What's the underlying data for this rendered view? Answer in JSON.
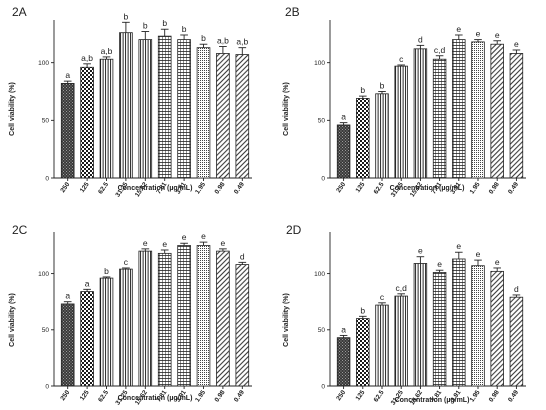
{
  "figure": {
    "panels": [
      "2A",
      "2B",
      "2C",
      "2D"
    ]
  },
  "chart_data": [
    {
      "type": "bar",
      "panel_label": "2A",
      "xlabel": "Concentration (µg/mL)",
      "ylabel": "Cell viability (%)",
      "ylim": [
        0,
        137
      ],
      "yticks": [
        "0",
        "50",
        "100"
      ],
      "categories": [
        "250",
        "125",
        "62.5",
        "31.25",
        "15.62",
        "7.81",
        "3.91",
        "1.95",
        "0.98",
        "0.49"
      ],
      "values": [
        82,
        96,
        103,
        126,
        120,
        123,
        120,
        113,
        108,
        107
      ],
      "errors": [
        2,
        3,
        2,
        9,
        7,
        6,
        4,
        3,
        6,
        6
      ],
      "letters": [
        "a",
        "a,b",
        "a,b",
        "b",
        "b",
        "b",
        "b",
        "b",
        "a,b",
        "a,b"
      ],
      "patterns": [
        "dark",
        "check",
        "vert",
        "vert",
        "vert",
        "hgrid",
        "hgrid",
        "grid",
        "diag",
        "diag"
      ],
      "grid": false
    },
    {
      "type": "bar",
      "panel_label": "2B",
      "xlabel": "Concentration (µg/mL)",
      "ylabel": "Cell viability (%)",
      "ylim": [
        0,
        137
      ],
      "yticks": [
        "0",
        "50",
        "100"
      ],
      "categories": [
        "250",
        "125",
        "62.5",
        "31.25",
        "15.62",
        "7.81",
        "3.91",
        "1.95",
        "0.98",
        "0.49"
      ],
      "values": [
        46,
        69,
        73,
        97,
        112,
        103,
        120,
        118,
        116,
        108
      ],
      "errors": [
        2,
        2,
        2,
        1,
        3,
        3,
        4,
        2,
        3,
        3
      ],
      "letters": [
        "a",
        "b",
        "b",
        "c",
        "d",
        "c,d",
        "e",
        "e",
        "e",
        "e"
      ],
      "patterns": [
        "dark",
        "check",
        "vert",
        "vert",
        "vert",
        "hgrid",
        "hgrid",
        "grid",
        "diag",
        "diag"
      ],
      "grid": false
    },
    {
      "type": "bar",
      "panel_label": "2C",
      "xlabel": "Concentration (µg/mL)",
      "ylabel": "Cell viability (%)",
      "ylim": [
        0,
        137
      ],
      "yticks": [
        "0",
        "50",
        "100"
      ],
      "categories": [
        "250",
        "125",
        "62.5",
        "31.25",
        "15.62",
        "7.81",
        "3.91",
        "1.95",
        "0.98",
        "0.49"
      ],
      "values": [
        73,
        84,
        96,
        104,
        120,
        118,
        125,
        125,
        120,
        108
      ],
      "errors": [
        2,
        2,
        1,
        1,
        2,
        3,
        2,
        3,
        2,
        2
      ],
      "letters": [
        "a",
        "a",
        "b",
        "c",
        "e",
        "e",
        "e",
        "e",
        "e",
        "d"
      ],
      "patterns": [
        "dark",
        "check",
        "vert",
        "vert",
        "vert",
        "hgrid",
        "hgrid",
        "grid",
        "diag",
        "diag"
      ],
      "grid": false
    },
    {
      "type": "bar",
      "panel_label": "2D",
      "xlabel": "Concentration (µg/mL)",
      "ylabel": "Cell viability (%)",
      "ylim": [
        0,
        137
      ],
      "yticks": [
        "0",
        "50",
        "100"
      ],
      "categories": [
        "250",
        "125",
        "62.5",
        "31.25",
        "15.62",
        "7.81",
        "3.91",
        "1.95",
        "0.98",
        "0.49"
      ],
      "values": [
        43,
        60,
        72,
        80,
        109,
        101,
        113,
        107,
        102,
        79
      ],
      "errors": [
        2,
        2,
        2,
        2,
        6,
        2,
        6,
        5,
        3,
        2
      ],
      "letters": [
        "a",
        "b",
        "c",
        "c,d",
        "e",
        "e",
        "e",
        "e",
        "e",
        "d"
      ],
      "patterns": [
        "dark",
        "check",
        "vert",
        "vert",
        "vert",
        "hgrid",
        "hgrid",
        "grid",
        "diag",
        "diag"
      ],
      "grid": false
    }
  ]
}
